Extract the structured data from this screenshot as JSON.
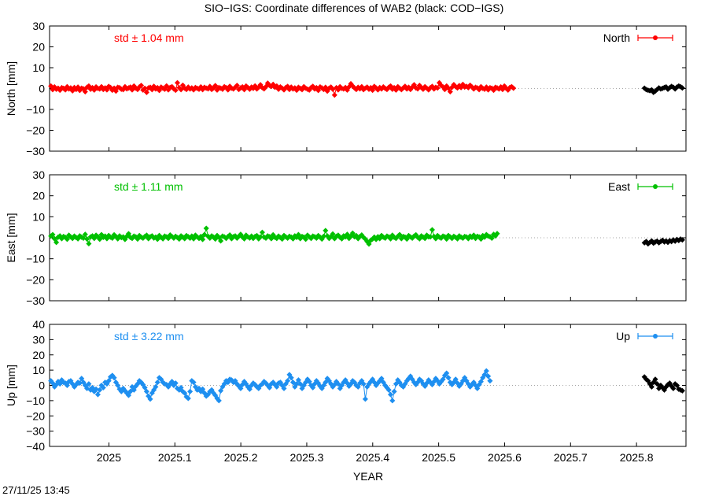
{
  "title": "SIO−IGS: Coordinate differences of WAB2 (black: COD−IGS)",
  "timestamp": "27/11/25 13:45",
  "xlabel": "YEAR",
  "xticks": [
    "2025",
    "2025.1",
    "2025.2",
    "2025.3",
    "2025.4",
    "2025.5",
    "2025.6",
    "2025.7",
    "2025.8"
  ],
  "chart_data": [
    {
      "type": "line",
      "name": "North",
      "ylabel": "North [mm]",
      "std_label": "std ± 1.04 mm",
      "legend": "North",
      "color": "#ff0000",
      "xlim": [
        2024.91,
        2025.875
      ],
      "ylim": [
        -30,
        30
      ],
      "yticks": [
        "30",
        "20",
        "10",
        "0",
        "−10",
        "−20",
        "−30"
      ],
      "ytick_values": [
        30,
        20,
        10,
        0,
        -10,
        -20,
        -30
      ],
      "x_start": 2024.912,
      "x_step": 0.00274,
      "values": [
        1.2,
        -0.5,
        0.8,
        -0.3,
        0.2,
        -0.8,
        0.4,
        0.1,
        -0.6,
        0.9,
        -0.2,
        0.3,
        -1.1,
        0.5,
        -0.4,
        0.7,
        -0.9,
        0.2,
        -0.1,
        -1.5,
        0.6,
        1.2,
        -0.3,
        0.4,
        -0.7,
        0.8,
        0.1,
        -0.2,
        0.9,
        -0.4,
        0.3,
        -0.6,
        1.0,
        0.5,
        -0.8,
        0.2,
        -1.2,
        0.6,
        0.4,
        -0.3,
        -0.5,
        0.9,
        -0.1,
        0.3,
        0.7,
        -0.6,
        1.2,
        0.2,
        -0.4,
        0.8,
        1.5,
        -0.7,
        0.1,
        -1.8,
        0.3,
        0.6,
        -0.5,
        1.1,
        -0.2,
        0.4,
        -0.9,
        0.7,
        0.2,
        -0.3,
        1.3,
        -0.6,
        0.5,
        0.9,
        -0.1,
        -0.8,
        2.8,
        0.4,
        -0.5,
        1.6,
        0.2,
        -0.4,
        0.7,
        -0.2,
        0.3,
        -0.6,
        0.5,
        0.1,
        -0.3,
        0.8,
        -0.5,
        0.6,
        0.2,
        -0.1,
        1.0,
        -0.4,
        0.3,
        1.4,
        -0.7,
        0.5,
        0.2,
        -0.3,
        0.9,
        0.4,
        -0.6,
        1.1,
        0.2,
        -0.2,
        0.6,
        1.5,
        -0.4,
        0.3,
        0.8,
        -0.5,
        1.2,
        0.5,
        -0.3,
        0.7,
        0.1,
        1.3,
        -0.2,
        0.6,
        1.8,
        0.4,
        -0.1,
        0.9,
        2.6,
        1.5,
        1.0,
        2.0,
        0.6,
        1.2,
        -0.3,
        0.8,
        0.2,
        -0.6,
        0.5,
        1.0,
        -0.4,
        0.7,
        -0.2,
        0.3,
        -0.8,
        0.6,
        0.1,
        -0.5,
        0.9,
        0.2,
        -0.3,
        -0.7,
        0.5,
        1.1,
        -0.2,
        0.4,
        -0.9,
        0.8,
        0.3,
        -0.4,
        0.6,
        -1.2,
        0.2,
        0.7,
        -0.3,
        -3.1,
        0.4,
        -0.6,
        0.9,
        0.1,
        -0.2,
        0.5,
        -0.7,
        0.8,
        2.3,
        1.2,
        0.3,
        -0.4,
        0.6,
        -0.1,
        0.9,
        -0.5,
        0.2,
        0.7,
        -0.3,
        0.4,
        -0.8,
        1.0,
        0.3,
        -0.6,
        0.5,
        -0.2,
        0.8,
        0.1,
        -0.4,
        0.6,
        1.2,
        -0.3,
        0.4,
        -0.7,
        0.9,
        0.2,
        -0.5,
        0.3,
        1.1,
        -0.2,
        0.6,
        -0.4,
        0.7,
        1.8,
        0.3,
        -0.1,
        1.5,
        0.5,
        -0.3,
        0.9,
        0.2,
        -0.6,
        0.4,
        1.0,
        -0.2,
        0.6,
        0.3,
        2.8,
        1.5,
        0.8,
        -0.4,
        1.2,
        0.2,
        -1.5,
        0.6,
        1.9,
        0.9,
        0.3,
        1.4,
        0.5,
        2.0,
        0.7,
        1.1,
        0.4,
        1.6,
        0.8,
        -0.2,
        0.6,
        0.3,
        -0.5,
        0.9,
        0.1,
        -0.3,
        0.7,
        -0.6,
        0.4,
        0.2,
        -0.8,
        0.6,
        0.3,
        -0.2,
        0.8,
        -0.4,
        1.2,
        0.1,
        -0.7,
        0.5,
        0.9,
        0.2
      ],
      "cmp_x_start": 2025.812,
      "cmp_x_step": 0.00274,
      "cmp_values": [
        0.2,
        -0.5,
        -0.8,
        -1.0,
        -0.6,
        -1.8,
        -1.2,
        -0.4,
        0.3,
        -0.2,
        0.1,
        0.5,
        0.8,
        -0.3,
        0.4,
        1.0,
        0.6,
        -0.2,
        0.7,
        1.2,
        0.9,
        0.3
      ]
    },
    {
      "type": "line",
      "name": "East",
      "ylabel": "East [mm]",
      "std_label": "std ± 1.11 mm",
      "legend": "East",
      "color": "#00c000",
      "xlim": [
        2024.91,
        2025.875
      ],
      "ylim": [
        -30,
        30
      ],
      "yticks": [
        "30",
        "20",
        "10",
        "0",
        "−10",
        "−20",
        "−30"
      ],
      "ytick_values": [
        30,
        20,
        10,
        0,
        -10,
        -20,
        -30
      ],
      "x_start": 2024.912,
      "x_step": 0.00274,
      "values": [
        0.8,
        1.5,
        -0.5,
        -2.2,
        0.3,
        0.9,
        -0.4,
        0.6,
        0.2,
        -0.7,
        1.2,
        0.4,
        -0.3,
        0.8,
        0.1,
        -0.5,
        0.9,
        0.3,
        -0.2,
        1.6,
        -0.6,
        -2.8,
        0.4,
        0.9,
        -0.3,
        1.2,
        0.5,
        -0.7,
        1.5,
        0.2,
        0.8,
        -0.4,
        1.1,
        0.3,
        -0.2,
        1.4,
        0.6,
        -0.5,
        0.9,
        0.1,
        0.4,
        -0.8,
        0.7,
        1.9,
        0.2,
        -0.3,
        0.8,
        0.4,
        -0.6,
        1.0,
        0.3,
        -0.2,
        0.6,
        1.2,
        -0.4,
        0.5,
        0.9,
        -0.1,
        0.3,
        -0.7,
        1.1,
        0.2,
        -0.5,
        0.8,
        0.4,
        -0.3,
        1.3,
        0.6,
        -0.2,
        0.7,
        0.1,
        -0.6,
        0.9,
        0.3,
        -0.4,
        1.0,
        0.5,
        -0.2,
        0.8,
        -0.5,
        1.2,
        0.4,
        -0.3,
        0.6,
        -0.8,
        1.5,
        4.5,
        0.7,
        -0.2,
        0.9,
        0.3,
        -0.6,
        1.1,
        0.2,
        -1.5,
        0.8,
        0.4,
        -0.3,
        0.6,
        1.3,
        -0.4,
        0.5,
        0.9,
        -0.2,
        0.7,
        1.6,
        0.3,
        -0.5,
        1.2,
        0.4,
        -0.1,
        0.8,
        -0.3,
        0.6,
        1.0,
        -0.5,
        0.4,
        2.6,
        0.3,
        -0.2,
        0.9,
        0.5,
        -0.4,
        1.4,
        0.2,
        -0.3,
        0.8,
        0.1,
        -0.6,
        1.1,
        0.4,
        -0.2,
        0.7,
        0.3,
        -0.5,
        0.9,
        0.2,
        1.5,
        -0.4,
        0.6,
        0.3,
        -0.7,
        1.2,
        0.4,
        -0.3,
        0.8,
        0.5,
        -0.2,
        1.0,
        0.3,
        -0.6,
        0.7,
        3.4,
        0.9,
        -0.3,
        0.5,
        1.8,
        -0.4,
        0.7,
        1.2,
        0.2,
        -0.5,
        0.9,
        0.4,
        1.6,
        -0.3,
        0.8,
        2.2,
        0.5,
        1.0,
        -0.4,
        0.6,
        1.3,
        0.2,
        -0.6,
        -1.8,
        -3.0,
        -1.2,
        -0.6,
        0.3,
        -0.8,
        0.5,
        -0.4,
        1.1,
        0.3,
        -0.2,
        0.8,
        0.4,
        -0.5,
        1.2,
        0.2,
        -0.3,
        0.7,
        1.5,
        -0.4,
        0.6,
        0.3,
        -0.6,
        1.0,
        0.4,
        -0.2,
        0.8,
        1.4,
        0.2,
        -0.5,
        0.9,
        0.3,
        -0.3,
        1.2,
        0.5,
        0.4,
        3.8,
        0.6,
        -0.4,
        1.0,
        0.3,
        -0.2,
        0.8,
        0.5,
        -0.6,
        1.1,
        0.4,
        -0.3,
        0.7,
        0.2,
        -0.5,
        0.9,
        0.3,
        -0.2,
        0.6,
        0.4,
        -0.4,
        0.8,
        0.2,
        1.2,
        -0.3,
        0.7,
        0.4,
        -0.6,
        1.0,
        0.3,
        1.5,
        0.8,
        0.5,
        -0.2,
        1.6,
        0.9,
        2.0
      ],
      "cmp_x_start": 2025.812,
      "cmp_x_step": 0.00274,
      "cmp_values": [
        -2.4,
        -1.8,
        -2.9,
        -2.2,
        -1.5,
        -2.6,
        -2.0,
        -1.6,
        -2.4,
        -1.8,
        -1.2,
        -2.0,
        -1.5,
        -2.2,
        -1.4,
        -1.8,
        -1.0,
        -1.6,
        -0.8,
        -1.3,
        -0.6,
        -1.0
      ]
    },
    {
      "type": "line",
      "name": "Up",
      "ylabel": "Up [mm]",
      "std_label": "std ± 3.22 mm",
      "legend": "Up",
      "color": "#1e8ff0",
      "xlim": [
        2024.91,
        2025.875
      ],
      "ylim": [
        -40,
        40
      ],
      "yticks": [
        "40",
        "30",
        "20",
        "10",
        "0",
        "−10",
        "−20",
        "−30",
        "−40"
      ],
      "ytick_values": [
        40,
        30,
        20,
        10,
        0,
        -10,
        -20,
        -30,
        -40
      ],
      "x_start": 2024.912,
      "x_step": 0.00274,
      "values": [
        3.0,
        1.5,
        -1.0,
        0.5,
        2.5,
        1.0,
        3.5,
        2.0,
        1.5,
        0.0,
        2.5,
        3.0,
        1.0,
        -1.0,
        0.5,
        2.0,
        1.5,
        4.5,
        2.0,
        0.0,
        -2.0,
        1.0,
        -3.0,
        -1.5,
        -4.0,
        -2.5,
        -6.0,
        -3.0,
        0.0,
        -1.5,
        2.0,
        1.0,
        3.0,
        5.5,
        6.5,
        5.0,
        2.0,
        0.0,
        -2.5,
        -4.0,
        -2.0,
        -3.5,
        -5.0,
        -6.5,
        -4.0,
        -1.0,
        -3.0,
        -0.5,
        1.0,
        3.0,
        2.0,
        0.5,
        -1.5,
        -4.0,
        -7.0,
        -9.0,
        -5.0,
        -3.0,
        -1.0,
        2.0,
        5.0,
        4.0,
        2.0,
        1.0,
        0.5,
        -1.0,
        1.0,
        2.5,
        0.0,
        1.5,
        -2.0,
        -3.0,
        -1.5,
        -4.0,
        -5.0,
        -7.5,
        -8.5,
        -4.0,
        3.0,
        2.0,
        -1.0,
        -3.0,
        -2.0,
        -4.0,
        -2.5,
        -5.0,
        -7.0,
        -6.0,
        -4.0,
        -3.0,
        -5.0,
        -6.5,
        -8.5,
        -10.0,
        -3.5,
        -1.0,
        1.0,
        3.0,
        2.0,
        4.0,
        3.5,
        2.0,
        3.0,
        1.0,
        -0.5,
        -2.0,
        0.5,
        2.5,
        1.0,
        -1.0,
        -2.5,
        0.0,
        1.5,
        0.5,
        -1.0,
        -2.0,
        0.0,
        1.0,
        2.5,
        1.5,
        0.0,
        -1.5,
        1.0,
        2.0,
        0.5,
        -1.0,
        1.5,
        2.0,
        0.0,
        -2.0,
        1.0,
        3.0,
        7.0,
        5.0,
        2.0,
        -1.0,
        1.0,
        3.5,
        1.0,
        -2.0,
        0.0,
        2.0,
        4.0,
        2.5,
        0.0,
        -1.5,
        1.0,
        3.0,
        1.5,
        -0.5,
        -2.0,
        0.0,
        2.0,
        4.5,
        3.0,
        1.0,
        -1.0,
        0.5,
        2.5,
        1.0,
        -2.0,
        0.0,
        2.0,
        3.5,
        1.5,
        -0.5,
        1.0,
        3.0,
        2.0,
        0.0,
        -1.0,
        1.5,
        3.0,
        1.0,
        -9.0,
        -1.0,
        1.0,
        2.5,
        4.0,
        2.0,
        0.0,
        1.5,
        3.0,
        4.5,
        2.0,
        0.0,
        -1.5,
        -3.0,
        -6.0,
        -10.0,
        -4.0,
        1.0,
        3.5,
        2.0,
        0.0,
        -1.0,
        1.0,
        3.0,
        4.5,
        6.0,
        4.0,
        2.0,
        0.5,
        2.0,
        4.0,
        3.0,
        1.0,
        -0.5,
        1.5,
        3.5,
        2.0,
        0.5,
        2.5,
        4.5,
        3.0,
        1.0,
        2.5,
        4.0,
        6.5,
        8.0,
        5.0,
        2.0,
        0.5,
        2.0,
        4.0,
        1.5,
        -0.5,
        1.0,
        3.0,
        5.0,
        3.0,
        1.0,
        -1.0,
        0.5,
        2.0,
        0.0,
        -2.0,
        0.5,
        2.5,
        5.0,
        7.0,
        9.5,
        6.0,
        3.0
      ],
      "cmp_x_start": 2025.812,
      "cmp_x_step": 0.00274,
      "cmp_values": [
        5.5,
        4.0,
        3.0,
        1.0,
        -1.0,
        2.0,
        4.0,
        1.0,
        -2.0,
        0.0,
        -1.5,
        -3.0,
        -1.0,
        0.5,
        1.5,
        -0.5,
        -2.0,
        1.0,
        0.0,
        -2.5,
        -3.0,
        -3.5
      ]
    }
  ]
}
